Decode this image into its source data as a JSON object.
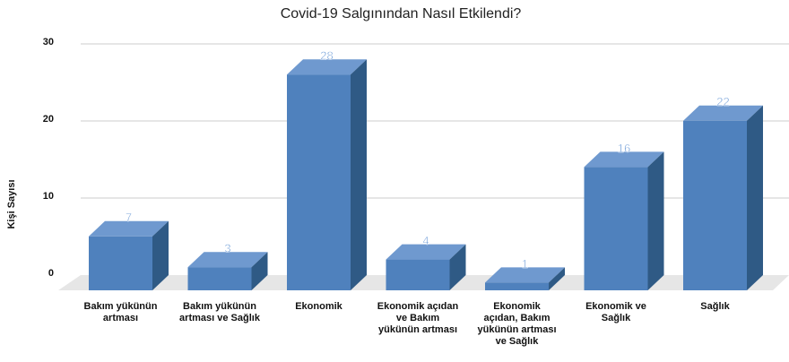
{
  "chart_data": {
    "type": "bar3d",
    "title": "Covid-19 Salgınından Nasıl Etkilendi?",
    "y_label": "Kişi Sayısı",
    "categories": [
      "Bakım yükünün artması",
      "Bakım yükünün artması ve Sağlık",
      "Ekonomik",
      "Ekonomik açıdan ve Bakım yükünün artması",
      "Ekonomik açıdan, Bakım yükünün artması ve Sağlık",
      "Ekonomik ve Sağlık",
      "Sağlık"
    ],
    "values": [
      7,
      3,
      28,
      4,
      1,
      16,
      22
    ],
    "color": "#4f81bd",
    "ylim": [
      0,
      30
    ],
    "yticks": [
      0,
      10,
      20,
      30
    ],
    "grid": true
  }
}
